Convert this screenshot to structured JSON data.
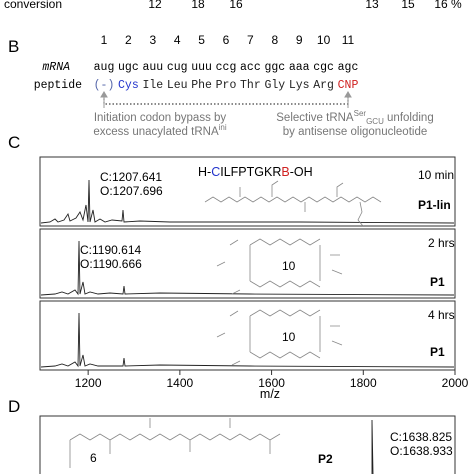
{
  "top": {
    "label": "conversion",
    "values": [
      "12",
      "18",
      "16",
      "13",
      "15",
      "16 %"
    ]
  },
  "panel_b": {
    "label": "B",
    "positions": [
      "1",
      "2",
      "3",
      "4",
      "5",
      "6",
      "7",
      "8",
      "9",
      "10",
      "11"
    ],
    "mrna_label": "mRNA",
    "codons": [
      "aug",
      "ugc",
      "auu",
      "cug",
      "uuu",
      "ccg",
      "acc",
      "ggc",
      "aaa",
      "cgc",
      "agc"
    ],
    "peptide_label": "peptide",
    "residues": [
      "(-)",
      "Cys",
      "Ile",
      "Leu",
      "Phe",
      "Pro",
      "Thr",
      "Gly",
      "Lys",
      "Arg",
      "CNP"
    ],
    "note_left": [
      "Initiation codon bypass by",
      "excess unacylated tRNA",
      "ini"
    ],
    "note_right": [
      "Selective tRNA",
      "Ser",
      "GCU",
      " unfolding",
      "by antisense oligonucleotide"
    ]
  },
  "panel_c": {
    "label": "C",
    "sequence": [
      "H-",
      "C",
      "ILFPTGKR",
      "B",
      "-OH"
    ],
    "spectra": [
      {
        "calc": "C:1207.641",
        "obs": "O:1207.696",
        "time": "10 min",
        "compound": "P1-lin"
      },
      {
        "calc": "C:1190.614",
        "obs": "O:1190.666",
        "time": "2 hrs",
        "ring": "10",
        "compound": "P1"
      },
      {
        "time": "4 hrs",
        "ring": "10",
        "compound": "P1"
      }
    ],
    "xlim": [
      1095,
      2000
    ],
    "xticks": [
      1200,
      1400,
      1600,
      1800,
      2000
    ],
    "xlabel": "m/z"
  },
  "panel_d": {
    "label": "D",
    "calc": "C:1638.825",
    "obs": "O:1638.933",
    "ring": "6",
    "compound": "P2"
  }
}
